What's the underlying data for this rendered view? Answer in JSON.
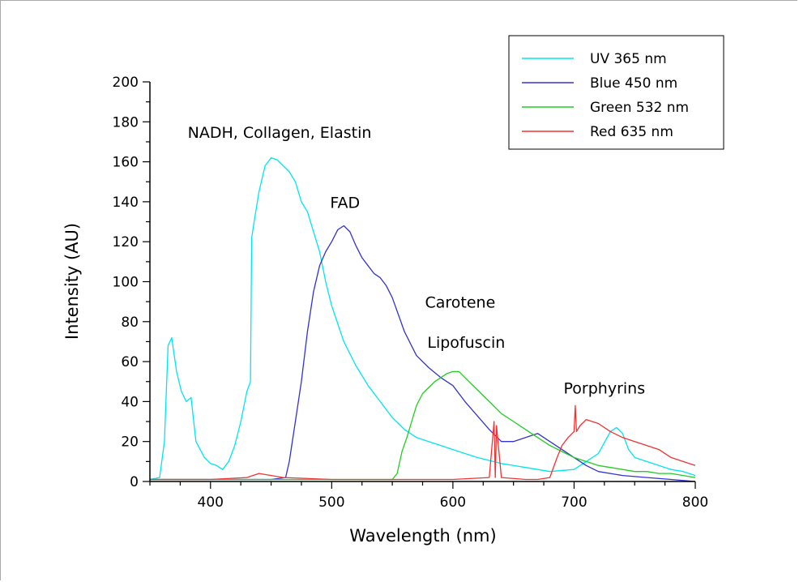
{
  "chart_data": {
    "type": "line",
    "xlabel": "Wavelength (nm)",
    "ylabel": "Intensity (AU)",
    "xlim": [
      350,
      800
    ],
    "ylim": [
      0,
      200
    ],
    "x_ticks": [
      400,
      500,
      600,
      700,
      800
    ],
    "y_ticks": [
      0,
      20,
      40,
      60,
      80,
      100,
      120,
      140,
      160,
      180,
      200
    ],
    "grid": false,
    "legend_position": "top-right",
    "annotations": [
      {
        "text": "NADH, Collagen, Elastin",
        "x": 457,
        "y": 172
      },
      {
        "text": "FAD",
        "x": 511,
        "y": 137
      },
      {
        "text": "Carotene",
        "x": 606,
        "y": 87
      },
      {
        "text": "Lipofuscin",
        "x": 611,
        "y": 67
      },
      {
        "text": "Porphyrins",
        "x": 725,
        "y": 44
      }
    ],
    "series": [
      {
        "name": "UV 365 nm",
        "color": "#00e5ee",
        "x": [
          350,
          358,
          362,
          365,
          368,
          372,
          376,
          380,
          384,
          388,
          395,
          400,
          405,
          410,
          415,
          420,
          425,
          430,
          433,
          434,
          436,
          440,
          445,
          450,
          455,
          460,
          465,
          470,
          475,
          480,
          485,
          490,
          495,
          500,
          510,
          520,
          530,
          540,
          550,
          560,
          570,
          580,
          590,
          600,
          620,
          640,
          660,
          680,
          700,
          710,
          720,
          730,
          735,
          740,
          745,
          750,
          760,
          770,
          780,
          790,
          800
        ],
        "y": [
          1,
          2,
          20,
          68,
          72,
          55,
          45,
          40,
          42,
          20,
          12,
          9,
          8,
          6,
          10,
          18,
          30,
          45,
          50,
          122,
          130,
          145,
          158,
          162,
          161,
          158,
          155,
          150,
          140,
          135,
          125,
          115,
          100,
          88,
          70,
          58,
          48,
          40,
          32,
          26,
          22,
          20,
          18,
          16,
          12,
          9,
          7,
          5,
          6,
          10,
          14,
          25,
          27,
          24,
          16,
          12,
          10,
          8,
          6,
          5,
          3
        ]
      },
      {
        "name": "Blue 450 nm",
        "color": "#3333cc",
        "x": [
          350,
          400,
          450,
          462,
          465,
          470,
          475,
          480,
          485,
          490,
          495,
          500,
          505,
          510,
          515,
          520,
          525,
          530,
          535,
          540,
          545,
          550,
          560,
          570,
          580,
          590,
          600,
          610,
          620,
          630,
          640,
          650,
          660,
          670,
          680,
          690,
          700,
          710,
          720,
          740,
          760,
          780,
          800
        ],
        "y": [
          1,
          1,
          1,
          2,
          10,
          30,
          50,
          75,
          95,
          108,
          115,
          120,
          126,
          128,
          125,
          118,
          112,
          108,
          104,
          102,
          98,
          92,
          75,
          63,
          57,
          52,
          48,
          40,
          33,
          26,
          20,
          20,
          22,
          24,
          20,
          16,
          12,
          8,
          5,
          3,
          2,
          1,
          0
        ]
      },
      {
        "name": "Green 532 nm",
        "color": "#22cc22",
        "x": [
          350,
          400,
          450,
          500,
          550,
          554,
          558,
          562,
          566,
          570,
          575,
          580,
          585,
          590,
          595,
          600,
          605,
          610,
          620,
          630,
          640,
          650,
          660,
          670,
          680,
          690,
          700,
          710,
          720,
          730,
          740,
          750,
          760,
          770,
          780,
          790,
          800
        ],
        "y": [
          1,
          1,
          1,
          1,
          1,
          4,
          15,
          22,
          30,
          38,
          44,
          47,
          50,
          52,
          54,
          55,
          55,
          52,
          46,
          40,
          34,
          30,
          26,
          22,
          18,
          15,
          12,
          10,
          8,
          7,
          6,
          5,
          5,
          4,
          4,
          3,
          2
        ]
      },
      {
        "name": "Red 635 nm",
        "color": "#ee3333",
        "x": [
          350,
          400,
          430,
          440,
          450,
          460,
          500,
          550,
          600,
          630,
          634,
          635,
          636,
          640,
          660,
          670,
          680,
          686,
          690,
          695,
          700,
          701,
          702,
          705,
          710,
          720,
          730,
          740,
          750,
          760,
          770,
          780,
          790,
          800
        ],
        "y": [
          1,
          1,
          2,
          4,
          3,
          2,
          1,
          1,
          1,
          2,
          30,
          2,
          28,
          2,
          1,
          1,
          2,
          12,
          18,
          22,
          25,
          38,
          25,
          28,
          31,
          29,
          25,
          22,
          20,
          18,
          16,
          12,
          10,
          8
        ]
      }
    ]
  }
}
